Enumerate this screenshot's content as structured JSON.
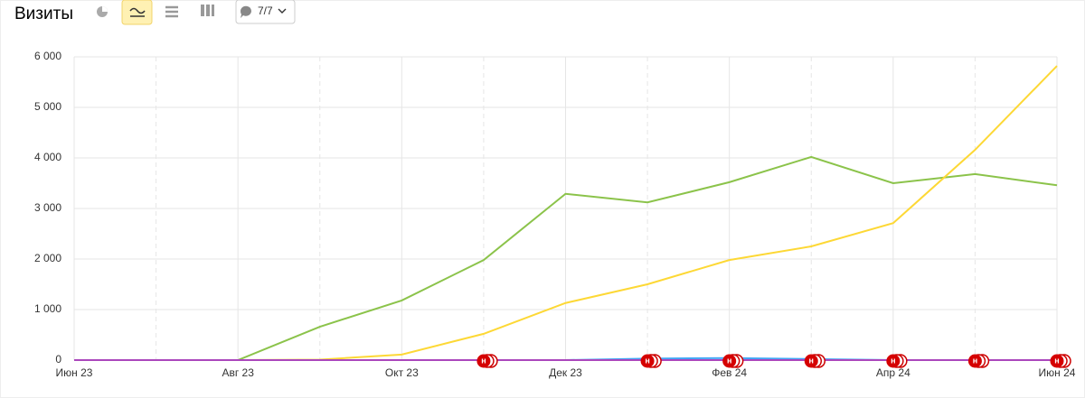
{
  "header": {
    "title": "Визиты",
    "filter": "7/7"
  },
  "chart_data": {
    "type": "line",
    "categories": [
      "Июн 23",
      null,
      "Авг 23",
      null,
      "Окт 23",
      null,
      "Дек 23",
      null,
      "Фев 24",
      null,
      "Апр 24",
      null,
      "Июн 24"
    ],
    "series": [
      {
        "color": "#8bc34a",
        "values": [
          0,
          0,
          0,
          660,
          1180,
          1980,
          3290,
          3120,
          3520,
          4020,
          3500,
          3680,
          3460
        ]
      },
      {
        "color": "#fdd835",
        "values": [
          0,
          0,
          0,
          10,
          110,
          520,
          1130,
          1500,
          1980,
          2250,
          2710,
          4160,
          5820
        ]
      },
      {
        "color": "#42a5f5",
        "values": [
          0,
          0,
          0,
          0,
          0,
          0,
          0,
          30,
          40,
          20,
          0,
          0,
          0
        ]
      },
      {
        "color": "#ab47bc",
        "values": [
          0,
          0,
          0,
          0,
          0,
          0,
          0,
          0,
          0,
          0,
          0,
          0,
          0
        ]
      }
    ],
    "ylim": [
      0,
      6000
    ],
    "yticks": [
      0,
      {
        "value": 1000,
        "label": "1 000"
      },
      {
        "value": 2000,
        "label": "2 000"
      },
      {
        "value": 3000,
        "label": "3 000"
      },
      {
        "value": 4000,
        "label": "4 000"
      },
      {
        "value": 5000,
        "label": "5 000"
      },
      {
        "value": 6000,
        "label": "6 000"
      }
    ],
    "grid": true,
    "annotations": [
      {
        "text": "н",
        "category": 5
      },
      {
        "text": "н",
        "category": 7
      },
      {
        "text": "н",
        "category": 8
      },
      {
        "text": "н",
        "category": 9
      },
      {
        "text": "н",
        "category": 10
      },
      {
        "text": "н",
        "category": 11
      },
      {
        "text": "н",
        "category": 12
      }
    ]
  }
}
